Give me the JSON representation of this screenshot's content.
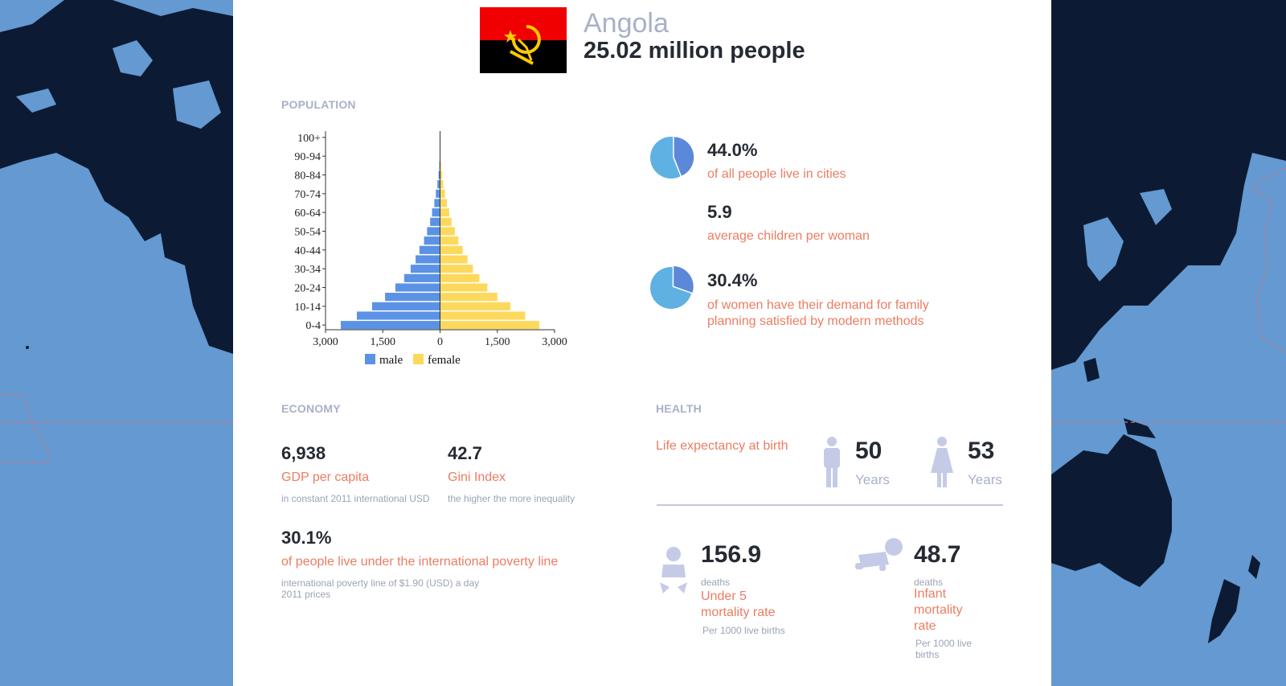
{
  "header": {
    "country": "Angola",
    "population": "25.02 million people"
  },
  "colors": {
    "map_water": "#6499d1",
    "map_land": "#0c1b33",
    "male": "#5b92e5",
    "female": "#fcd95c",
    "accent": "#ec7c62",
    "muted": "#a7b1c8",
    "pie_light": "#5fb1e3",
    "pie_dark": "#5b88d9"
  },
  "population": {
    "section_title": "POPULATION",
    "urban": {
      "value": "44.0%",
      "label": "of all people live in cities",
      "fraction": 0.44
    },
    "fertility": {
      "value": "5.9",
      "label": "average children per woman"
    },
    "family_planning": {
      "value": "30.4%",
      "label": "of women have their demand for family planning satisfied by modern methods",
      "fraction": 0.304
    }
  },
  "chart_data": {
    "type": "bar",
    "orientation": "horizontal-pyramid",
    "categories": [
      "0-4",
      "5-9",
      "10-14",
      "15-19",
      "20-24",
      "25-29",
      "30-34",
      "35-39",
      "40-44",
      "45-49",
      "50-54",
      "55-59",
      "60-64",
      "65-69",
      "70-74",
      "75-79",
      "80-84",
      "85-89",
      "90-94",
      "95-99",
      "100+"
    ],
    "y_tick_labels": [
      "0-4",
      "10-14",
      "20-24",
      "30-34",
      "40-44",
      "50-54",
      "60-64",
      "70-74",
      "80-84",
      "90-94",
      "100+"
    ],
    "x_tick_labels": [
      "3,000",
      "1,500",
      "0",
      "1,500",
      "3,000"
    ],
    "xlim": [
      -3000,
      3000
    ],
    "series": [
      {
        "name": "male",
        "values": [
          -2600,
          -2180,
          -1780,
          -1440,
          -1170,
          -940,
          -770,
          -640,
          -540,
          -420,
          -340,
          -260,
          -210,
          -150,
          -110,
          -70,
          -40,
          -20,
          -8,
          -3,
          -1
        ]
      },
      {
        "name": "female",
        "values": [
          2600,
          2230,
          1840,
          1500,
          1240,
          1030,
          860,
          720,
          590,
          480,
          390,
          300,
          240,
          180,
          130,
          85,
          55,
          25,
          10,
          4,
          1
        ]
      }
    ],
    "legend": [
      "male",
      "female"
    ],
    "legend_position": "bottom"
  },
  "economy": {
    "section_title": "ECONOMY",
    "gdp": {
      "value": "6,938",
      "label": "GDP per capita",
      "note": "in constant 2011 international USD"
    },
    "gini": {
      "value": "42.7",
      "label": "Gini Index",
      "note": "the higher the more inequality"
    },
    "poverty": {
      "value": "30.1%",
      "label": "of people live under the international poverty line",
      "note1": "international poverty line of $1.90 (USD) a day",
      "note2": "2011 prices"
    }
  },
  "health": {
    "section_title": "HEALTH",
    "life_expectancy_label": "Life expectancy at birth",
    "male_years": "50",
    "female_years": "53",
    "years_unit": "Years",
    "under5": {
      "value": "156.9",
      "unit": "deaths",
      "label": "Under 5 mortality rate",
      "note": "Per 1000 live births"
    },
    "infant": {
      "value": "48.7",
      "unit": "deaths",
      "label": "Infant mortality rate",
      "note": "Per 1000 live births"
    }
  }
}
